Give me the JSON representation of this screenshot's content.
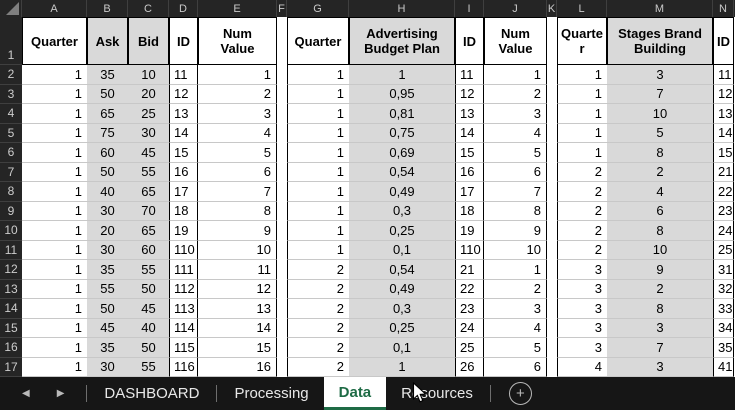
{
  "sheet": {
    "column_letters": [
      "A",
      "B",
      "C",
      "D",
      "E",
      "F",
      "G",
      "H",
      "I",
      "J",
      "K",
      "L",
      "M",
      "N"
    ],
    "row_numbers": [
      "1",
      "2",
      "3",
      "4",
      "5",
      "6",
      "7",
      "8",
      "9",
      "10",
      "11",
      "12",
      "13",
      "14",
      "15",
      "16",
      "17"
    ],
    "header_row": [
      "Quarter",
      "Ask",
      "Bid",
      "ID",
      "Num Value",
      "",
      "Quarter",
      "Advertising Budget Plan",
      "ID",
      "Num Value",
      "",
      "Quarter",
      "Stages Brand Building",
      "ID"
    ],
    "data_rows": [
      [
        "1",
        "35",
        "10",
        "11",
        "1",
        "",
        "1",
        "1",
        "11",
        "1",
        "",
        "1",
        "3",
        "11"
      ],
      [
        "1",
        "50",
        "20",
        "12",
        "2",
        "",
        "1",
        "0,95",
        "12",
        "2",
        "",
        "1",
        "7",
        "12"
      ],
      [
        "1",
        "65",
        "25",
        "13",
        "3",
        "",
        "1",
        "0,81",
        "13",
        "3",
        "",
        "1",
        "10",
        "13"
      ],
      [
        "1",
        "75",
        "30",
        "14",
        "4",
        "",
        "1",
        "0,75",
        "14",
        "4",
        "",
        "1",
        "5",
        "14"
      ],
      [
        "1",
        "60",
        "45",
        "15",
        "5",
        "",
        "1",
        "0,69",
        "15",
        "5",
        "",
        "1",
        "8",
        "15"
      ],
      [
        "1",
        "50",
        "55",
        "16",
        "6",
        "",
        "1",
        "0,54",
        "16",
        "6",
        "",
        "2",
        "2",
        "21"
      ],
      [
        "1",
        "40",
        "65",
        "17",
        "7",
        "",
        "1",
        "0,49",
        "17",
        "7",
        "",
        "2",
        "4",
        "22"
      ],
      [
        "1",
        "30",
        "70",
        "18",
        "8",
        "",
        "1",
        "0,3",
        "18",
        "8",
        "",
        "2",
        "6",
        "23"
      ],
      [
        "1",
        "20",
        "65",
        "19",
        "9",
        "",
        "1",
        "0,25",
        "19",
        "9",
        "",
        "2",
        "8",
        "24"
      ],
      [
        "1",
        "30",
        "60",
        "110",
        "10",
        "",
        "1",
        "0,1",
        "110",
        "10",
        "",
        "2",
        "10",
        "25"
      ],
      [
        "1",
        "35",
        "55",
        "111",
        "11",
        "",
        "2",
        "0,54",
        "21",
        "1",
        "",
        "3",
        "9",
        "31"
      ],
      [
        "1",
        "55",
        "50",
        "112",
        "12",
        "",
        "2",
        "0,49",
        "22",
        "2",
        "",
        "3",
        "2",
        "32"
      ],
      [
        "1",
        "50",
        "45",
        "113",
        "13",
        "",
        "2",
        "0,3",
        "23",
        "3",
        "",
        "3",
        "8",
        "33"
      ],
      [
        "1",
        "45",
        "40",
        "114",
        "14",
        "",
        "2",
        "0,25",
        "24",
        "4",
        "",
        "3",
        "3",
        "34"
      ],
      [
        "1",
        "35",
        "50",
        "115",
        "15",
        "",
        "2",
        "0,1",
        "25",
        "5",
        "",
        "3",
        "7",
        "35"
      ],
      [
        "1",
        "30",
        "55",
        "116",
        "16",
        "",
        "2",
        "1",
        "26",
        "6",
        "",
        "4",
        "3",
        "41"
      ]
    ],
    "colors": {
      "shaded_fill": "#d9d9d9",
      "header_bg": "#252525",
      "accent_green": "#1e6b45"
    }
  },
  "tab_bar": {
    "nav_prev": "◀",
    "nav_next": "▶",
    "tabs": [
      {
        "label": "DASHBOARD",
        "active": false
      },
      {
        "label": "Processing",
        "active": false
      },
      {
        "label": "Data",
        "active": true
      },
      {
        "label": "Resources",
        "active": false
      }
    ],
    "add_sheet": "+"
  }
}
